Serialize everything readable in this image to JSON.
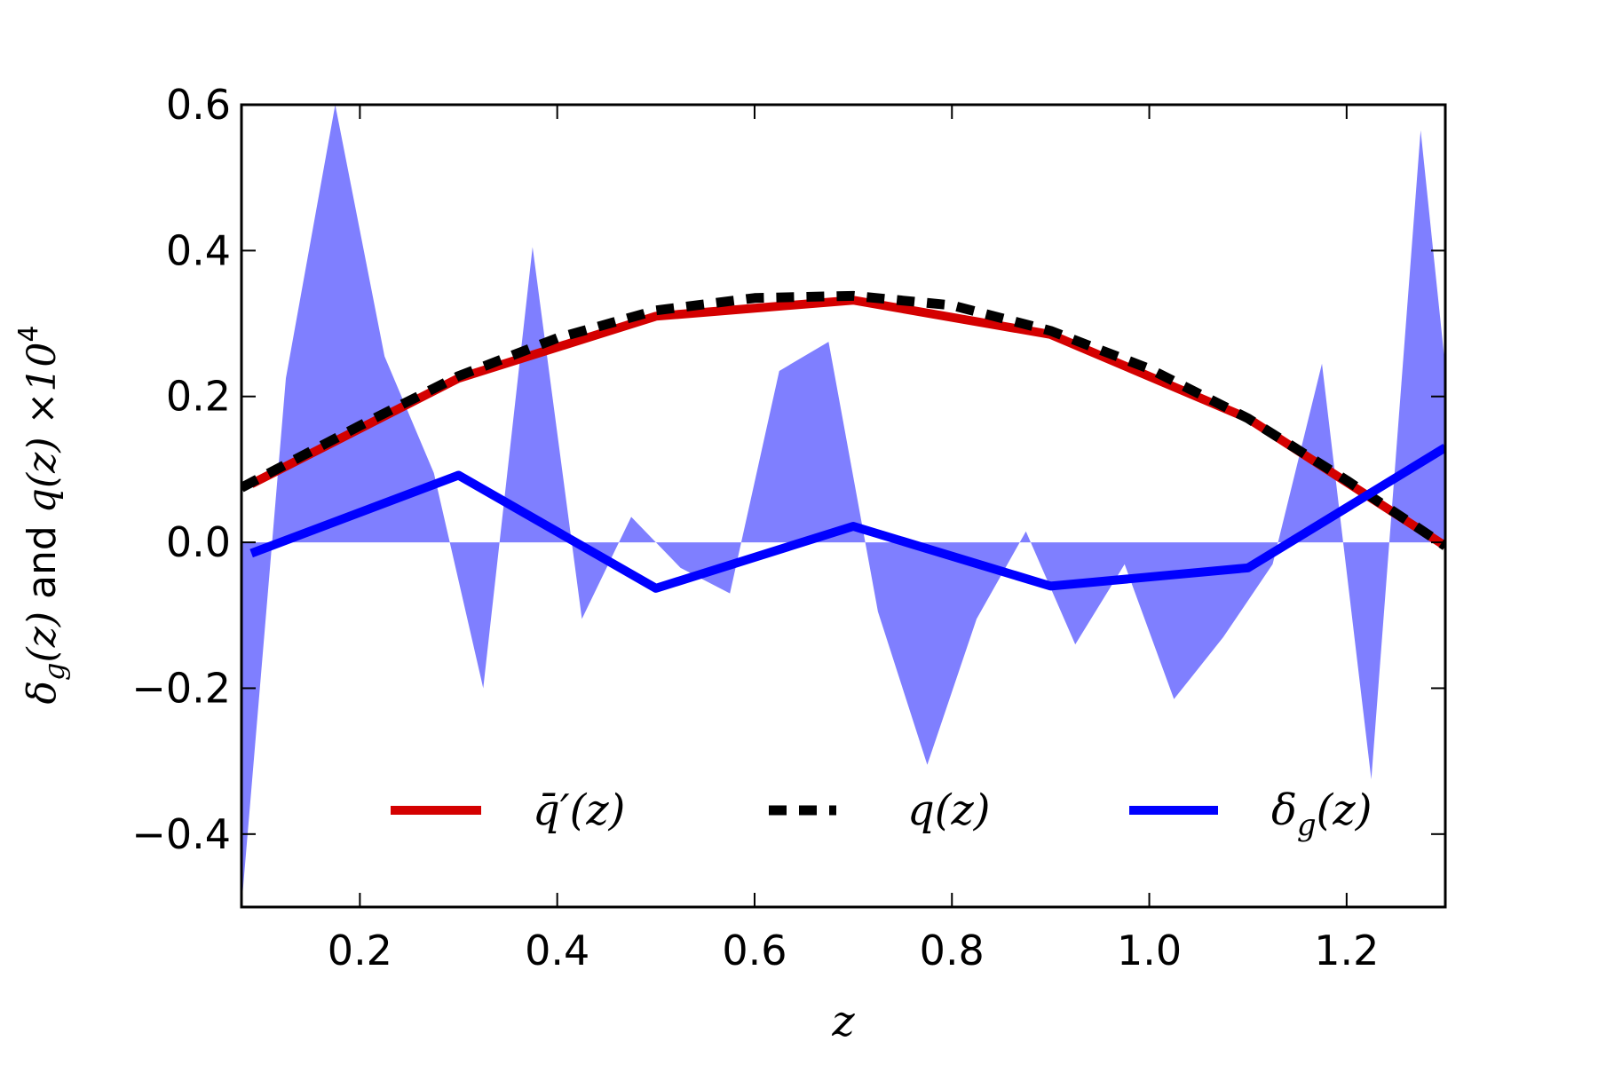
{
  "chart_data": {
    "type": "line",
    "xlabel": "z",
    "ylabel": "δ_g(z) and q(z) ×10^4",
    "ylabel_parts": {
      "delta_sym": "δ",
      "delta_sub": "g",
      "delta_arg": "(z)",
      "conj": " and ",
      "q_text": "q(z) ×10",
      "q_exp": "4"
    },
    "xlim": [
      0.08,
      1.3
    ],
    "ylim": [
      -0.5,
      0.6
    ],
    "xticks": [
      0.2,
      0.4,
      0.6,
      0.8,
      1.0,
      1.2
    ],
    "xtick_labels": [
      "0.2",
      "0.4",
      "0.6",
      "0.8",
      "1.0",
      "1.2"
    ],
    "yticks": [
      0.6,
      0.4,
      0.2,
      0.0,
      -0.2,
      -0.4
    ],
    "ytick_labels": [
      "0.6",
      "0.4",
      "0.2",
      "0.0",
      "−0.2",
      "−0.4"
    ],
    "grid": false,
    "legend_position": "bottom-center",
    "fill": {
      "name": "",
      "color": "#7f7fff",
      "x": [
        0.08,
        0.125,
        0.175,
        0.225,
        0.275,
        0.325,
        0.375,
        0.425,
        0.475,
        0.525,
        0.575,
        0.625,
        0.675,
        0.725,
        0.775,
        0.825,
        0.875,
        0.925,
        0.975,
        1.025,
        1.075,
        1.125,
        1.175,
        1.225,
        1.275,
        1.3
      ],
      "y": [
        -0.5,
        0.225,
        0.6,
        0.255,
        0.095,
        -0.2,
        0.405,
        -0.105,
        0.035,
        -0.035,
        -0.07,
        0.235,
        0.275,
        -0.095,
        -0.305,
        -0.105,
        0.015,
        -0.14,
        -0.03,
        -0.215,
        -0.13,
        -0.03,
        0.245,
        -0.325,
        0.565,
        0.24
      ]
    },
    "series": [
      {
        "name": "q̄′(z)",
        "color": "#d40000",
        "style": "solid",
        "x": [
          0.09,
          0.3,
          0.5,
          0.7,
          0.9,
          1.1,
          1.3
        ],
        "y": [
          0.08,
          0.225,
          0.31,
          0.332,
          0.285,
          0.17,
          -0.005
        ]
      },
      {
        "name": "q(z)",
        "color": "#000000",
        "style": "dashed",
        "x": [
          0.08,
          0.2,
          0.3,
          0.4,
          0.5,
          0.6,
          0.7,
          0.8,
          0.9,
          1.0,
          1.1,
          1.2,
          1.3
        ],
        "y": [
          0.075,
          0.16,
          0.228,
          0.28,
          0.318,
          0.335,
          0.338,
          0.325,
          0.29,
          0.238,
          0.17,
          0.085,
          -0.005
        ]
      },
      {
        "name": "δ_g(z)",
        "color": "#0000ff",
        "style": "solid",
        "x": [
          0.09,
          0.3,
          0.5,
          0.7,
          0.9,
          1.1,
          1.3
        ],
        "y": [
          -0.015,
          0.092,
          -0.063,
          0.022,
          -0.06,
          -0.035,
          0.13
        ]
      }
    ],
    "legend": {
      "entries": [
        {
          "label_main": "q̄′",
          "label_sub": "",
          "label_tail": "(z)"
        },
        {
          "label_main": "q",
          "label_sub": "",
          "label_tail": "(z)"
        },
        {
          "label_main": "δ",
          "label_sub": "g",
          "label_tail": "(z)"
        }
      ]
    }
  }
}
